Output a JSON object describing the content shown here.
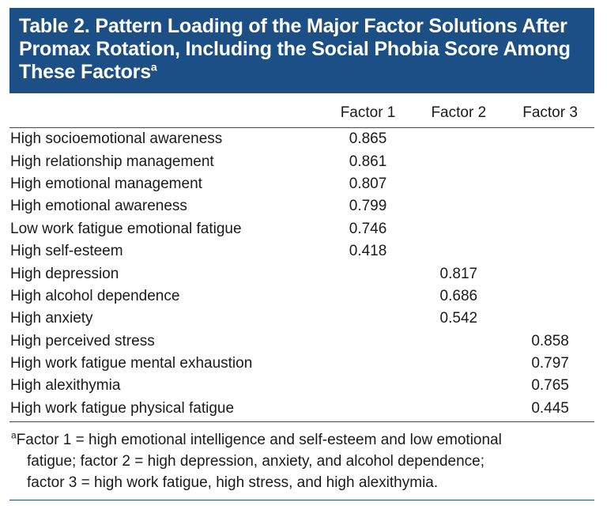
{
  "title": {
    "text": "Table 2. Pattern Loading of the Major Factor Solutions After Promax Rotation, Including the Social Phobia Score Among These Factors",
    "superscript": "a"
  },
  "columns": [
    "",
    "Factor 1",
    "Factor 2",
    "Factor 3"
  ],
  "rows": [
    {
      "label": "High socioemotional awareness",
      "f1": "0.865",
      "f2": "",
      "f3": ""
    },
    {
      "label": "High relationship management",
      "f1": "0.861",
      "f2": "",
      "f3": ""
    },
    {
      "label": "High emotional management",
      "f1": "0.807",
      "f2": "",
      "f3": ""
    },
    {
      "label": "High emotional awareness",
      "f1": "0.799",
      "f2": "",
      "f3": ""
    },
    {
      "label": "Low work fatigue emotional fatigue",
      "f1": "0.746",
      "f2": "",
      "f3": ""
    },
    {
      "label": "High self-esteem",
      "f1": "0.418",
      "f2": "",
      "f3": ""
    },
    {
      "label": "High depression",
      "f1": "",
      "f2": "0.817",
      "f3": ""
    },
    {
      "label": "High alcohol dependence",
      "f1": "",
      "f2": "0.686",
      "f3": ""
    },
    {
      "label": "High anxiety",
      "f1": "",
      "f2": "0.542",
      "f3": ""
    },
    {
      "label": "High perceived stress",
      "f1": "",
      "f2": "",
      "f3": "0.858"
    },
    {
      "label": "High work fatigue mental exhaustion",
      "f1": "",
      "f2": "",
      "f3": "0.797"
    },
    {
      "label": "High alexithymia",
      "f1": "",
      "f2": "",
      "f3": "0.765"
    },
    {
      "label": "High work fatigue physical fatigue",
      "f1": "",
      "f2": "",
      "f3": "0.445"
    }
  ],
  "footnote": {
    "marker": "a",
    "lines": [
      "Factor 1 = high emotional intelligence and self-esteem and low emotional",
      "fatigue; factor 2 = high depression, anxiety, and alcohol dependence;",
      "factor 3 = high work fatigue, high stress, and high alexithymia."
    ]
  },
  "colors": {
    "title_background": "#1b4f86",
    "rule": "#1b4f86"
  }
}
